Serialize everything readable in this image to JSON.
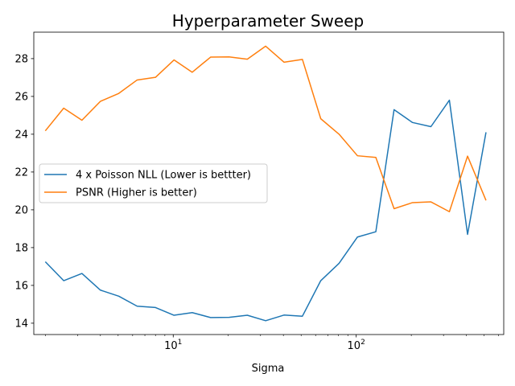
{
  "chart_data": {
    "type": "line",
    "title": "Hyperparameter Sweep",
    "xlabel": "Sigma",
    "ylabel": "",
    "xscale": "log",
    "xlim": [
      1.73,
      640
    ],
    "ylim": [
      13.4,
      29.4
    ],
    "xticks": [
      {
        "value": 10,
        "base": "10",
        "exp": "1"
      },
      {
        "value": 100,
        "base": "10",
        "exp": "2"
      }
    ],
    "yticks": [
      14,
      16,
      18,
      20,
      22,
      24,
      26,
      28
    ],
    "legend_position": "center-left",
    "grid": false,
    "x": [
      2,
      2.52,
      3.17,
      4,
      5.04,
      6.35,
      8,
      10.1,
      12.7,
      16,
      20.2,
      25.4,
      32,
      40.3,
      50.8,
      64,
      80.6,
      101.6,
      128,
      161,
      203,
      256,
      323,
      406,
      512
    ],
    "series": [
      {
        "name": "4 x Poisson NLL (Lower is bettter)",
        "color": "#1f77b4",
        "values": [
          17.25,
          16.25,
          16.63,
          15.75,
          15.43,
          14.9,
          14.83,
          14.42,
          14.56,
          14.3,
          14.31,
          14.42,
          14.13,
          14.43,
          14.37,
          16.25,
          17.17,
          18.56,
          18.84,
          25.3,
          24.62,
          24.4,
          25.8,
          18.7,
          24.1
        ]
      },
      {
        "name": "PSNR (Higher is better)",
        "color": "#ff7f0e",
        "values": [
          24.18,
          25.38,
          24.74,
          25.74,
          26.16,
          26.87,
          27.01,
          27.93,
          27.28,
          28.08,
          28.09,
          27.97,
          28.66,
          27.81,
          27.96,
          24.82,
          24.0,
          22.86,
          22.77,
          20.06,
          20.38,
          20.42,
          19.9,
          22.84,
          20.5
        ]
      }
    ]
  }
}
